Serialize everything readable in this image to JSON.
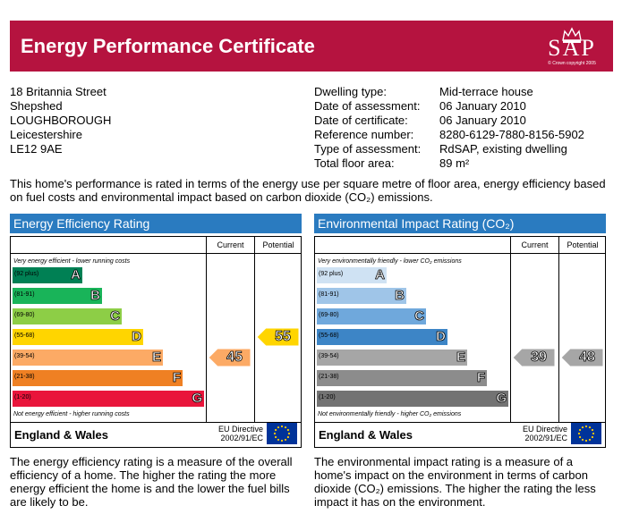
{
  "header": {
    "title": "Energy Performance Certificate",
    "logo_text": "SAP",
    "logo_copyright": "© Crown copyright 2005"
  },
  "address": {
    "lines": [
      "18 Britannia Street",
      "Shepshed",
      "LOUGHBOROUGH",
      "Leicestershire",
      "LE12 9AE"
    ]
  },
  "details": [
    {
      "label": "Dwelling type:",
      "value": "Mid-terrace house"
    },
    {
      "label": "Date of assessment:",
      "value": "06 January 2010"
    },
    {
      "label": "Date of certificate:",
      "value": "06 January 2010"
    },
    {
      "label": "Reference number:",
      "value": "8280-6129-7880-8156-5902"
    },
    {
      "label": "Type of assessment:",
      "value": "RdSAP, existing dwelling"
    },
    {
      "label": "Total floor area:",
      "value": "89 m²"
    }
  ],
  "intro": "This home's performance is rated in terms of the energy use per square metre of floor area, energy efficiency based on fuel costs and environmental impact based on carbon dioxide (CO₂) emissions.",
  "energy": {
    "title": "Energy Efficiency Rating",
    "col_current": "Current",
    "col_potential": "Potential",
    "note_top": "Very energy efficient - lower running costs",
    "note_bottom": "Not energy efficient - higher running costs",
    "bands": [
      {
        "range": "(92 plus)",
        "letter": "A",
        "color": "#008054"
      },
      {
        "range": "(81-91)",
        "letter": "B",
        "color": "#19b459"
      },
      {
        "range": "(69-80)",
        "letter": "C",
        "color": "#8dce46"
      },
      {
        "range": "(55-68)",
        "letter": "D",
        "color": "#ffd500"
      },
      {
        "range": "(39-54)",
        "letter": "E",
        "color": "#fcaa65"
      },
      {
        "range": "(21-38)",
        "letter": "F",
        "color": "#ef8023"
      },
      {
        "range": "(1-20)",
        "letter": "G",
        "color": "#e9153b"
      }
    ],
    "current": 45,
    "current_color": "#fcaa65",
    "potential": 55,
    "potential_color": "#ffd500",
    "region": "England & Wales",
    "directive": "EU Directive 2002/91/EC"
  },
  "environment": {
    "title": "Environmental Impact Rating (CO₂)",
    "col_current": "Current",
    "col_potential": "Potential",
    "note_top": "Very environmentally friendly - lower CO₂ emissions",
    "note_bottom": "Not environmentally friendly - higher CO₂ emissions",
    "bands": [
      {
        "range": "(92 plus)",
        "letter": "A",
        "color": "#cfe2f3"
      },
      {
        "range": "(81-91)",
        "letter": "B",
        "color": "#9fc5e8"
      },
      {
        "range": "(69-80)",
        "letter": "C",
        "color": "#6fa8dc"
      },
      {
        "range": "(55-68)",
        "letter": "D",
        "color": "#3d85c6"
      },
      {
        "range": "(39-54)",
        "letter": "E",
        "color": "#a6a6a6"
      },
      {
        "range": "(21-38)",
        "letter": "F",
        "color": "#8c8c8c"
      },
      {
        "range": "(1-20)",
        "letter": "G",
        "color": "#737373"
      }
    ],
    "current": 39,
    "current_color": "#a6a6a6",
    "potential": 48,
    "potential_color": "#a6a6a6",
    "region": "England & Wales",
    "directive": "EU Directive 2002/91/EC"
  },
  "desc_energy": "The energy efficiency rating is a measure of the overall efficiency of a home. The higher the rating the more energy efficient the home is and the lower the fuel bills are likely to be.",
  "desc_environment": "The environmental impact rating is a measure of a home's impact on the environment in terms of carbon dioxide (CO₂) emissions. The higher the rating the less impact it has on the environment."
}
